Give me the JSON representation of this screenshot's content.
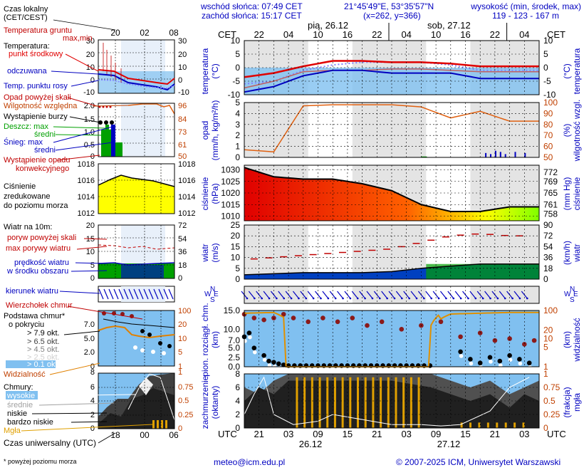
{
  "header": {
    "sunrise": "wschód słońca: 07:49 CET",
    "sunset": "zachód słońca: 15:17 CET",
    "coords": "21°45'49\"E, 53°35'57\"N",
    "grid": "(x=262, y=366)",
    "elev_title": "wysokość (min, środek, max)",
    "elev_values": "119 - 123 - 167 m"
  },
  "legend": {
    "czas_lokalny": "Czas lokalny",
    "cet_cest": "(CET/CEST)",
    "small_hours": [
      "20",
      "02",
      "08"
    ],
    "temp_gruntu": "Temperatura gruntu",
    "max_min": "max,min",
    "temperatura": "Temperatura:",
    "punkt_srodkowy": "punkt środkowy",
    "odczuwana": "odczuwana",
    "temp_rosy": "Temp. punktu rosy",
    "opad_powyzej": "Opad powyżej skali",
    "wilgotnosc": "Wilgotność względna",
    "burza": "Wystąpienie burzy",
    "deszcz_max": "Deszcz: max",
    "deszcz_sredni": "średni",
    "snieg_max": "Śnieg:   max",
    "snieg_sredni": "średni",
    "konwekcja1": "Wystąpienie opadu",
    "konwekcja2": "konwekcyjnego",
    "cisnienie1": "Ciśnienie",
    "cisnienie2": "zredukowane",
    "cisnienie3": "do poziomu morza",
    "wiatr_na": "Wiatr na 10m:",
    "poryw_powyzej": "poryw powyżej skali",
    "max_porywy": "max porywy wiatru",
    "predkosc1": "prędkość wiatru",
    "predkosc2": "w środku obszaru",
    "kierunek": "kierunek wiatru",
    "wierzcholek": "Wierzchołek chmur",
    "podstawa1": "Podstawa chmur*",
    "podstawa2": "o pokryciu",
    "okt": [
      "> 7.9 okt.",
      "> 6.5 okt.",
      "> 4.5 okt.",
      "> 2.5 okt.",
      "> 0.1 okt."
    ],
    "widzialnosc": "Widzialność",
    "chmury": "Chmury:",
    "wysokie": "wysokie",
    "srednie": "średnie",
    "niskie": "niskie",
    "bardzo_niskie": "bardzo niskie",
    "mgla": "Mgła",
    "czas_uniwersalny": "Czas uniwersalny (UTC)",
    "utc_hours": [
      "18",
      "00",
      "06"
    ],
    "footnote": "* powyżej poziomu morza"
  },
  "axes": {
    "cet": "CET",
    "utc": "UTC",
    "day1": "pią, 26.12",
    "day2": "sob, 27.12",
    "day1_bottom": "26.12",
    "day2_bottom": "27.12",
    "top_hours": [
      "22",
      "04",
      "10",
      "16",
      "22",
      "04",
      "10",
      "16",
      "22",
      "04"
    ],
    "bottom_hours": [
      "21",
      "03",
      "09",
      "15",
      "21",
      "03",
      "09",
      "15",
      "21",
      "03"
    ],
    "temp_label": [
      "temperatura",
      "(°C)"
    ],
    "opad_label": [
      "opad",
      "(mm/h, kg/m²/h)"
    ],
    "wilg_label": [
      "(%)",
      "wilgotność wzgl."
    ],
    "cisn_label": [
      "ciśnienie",
      "(hPa)"
    ],
    "mmhg_label": [
      "(mm Hg)",
      "ciśnienie"
    ],
    "wiatr_label": [
      "wiatr",
      "(m/s)"
    ],
    "kmh_label": [
      "(km/h)",
      "wiatr"
    ],
    "chm_label": [
      "pion. rozciągł. chm.",
      "(km)"
    ],
    "widz_label": [
      "(km)",
      "widzialność"
    ],
    "zachm_label": [
      "zachmurzenie",
      "(oktanty)"
    ],
    "mgla_label": [
      "(frakcja)",
      "mgła"
    ],
    "compass": [
      "N",
      "W",
      "E",
      "S"
    ]
  },
  "footer": {
    "email": "meteo@icm.edu.pl",
    "copyright": "© 2007-2025 ICM, Uniwersytet Warszawski"
  },
  "colors": {
    "red": "#e00000",
    "blue": "#0000c0",
    "green": "#00a000",
    "orange": "#e06010",
    "sky": "#80c0f0",
    "night": "#e0e0e0",
    "yellow": "#ffff00"
  },
  "chart_data": [
    {
      "type": "line",
      "title": "temperatura",
      "unit": "°C",
      "ylim": [
        -10,
        10
      ],
      "x_hours": [
        0,
        6,
        12,
        18,
        24,
        30,
        36,
        42,
        48,
        54
      ],
      "series": [
        {
          "name": "temperatura",
          "values": [
            -3.5,
            -2,
            0.5,
            2.5,
            2.5,
            2,
            2,
            1.5,
            0.5,
            0.5
          ]
        },
        {
          "name": "odczuwana",
          "values": [
            -9,
            -7,
            -3,
            -1,
            -1,
            -2,
            -2,
            -2,
            -4,
            -4
          ]
        },
        {
          "name": "punkt rosy",
          "values": [
            -7.5,
            -5,
            -1.5,
            -1,
            -1,
            -0.5,
            -0.5,
            -1,
            -1.5,
            -1.5
          ]
        },
        {
          "name": "temp. gruntu",
          "values": [
            -6,
            -5,
            -1,
            1,
            2,
            2,
            2,
            1,
            -1,
            -1
          ]
        }
      ]
    },
    {
      "type": "line",
      "title": "opad / wilgotność",
      "ylim_left": [
        0,
        5
      ],
      "ylim_right": [
        50,
        100
      ],
      "series": [
        {
          "name": "wilgotność względna",
          "values": [
            57,
            55,
            97,
            98,
            98,
            98,
            96,
            86,
            92,
            83
          ]
        },
        {
          "name": "opad",
          "values": [
            0,
            0,
            0,
            0,
            0,
            0,
            0,
            0.1,
            0.8,
            0.3
          ]
        }
      ]
    },
    {
      "type": "area",
      "title": "ciśnienie",
      "unit": "hPa",
      "ylim": [
        1008,
        1032
      ],
      "ylim_right": [
        758,
        772
      ],
      "values": [
        1031,
        1027,
        1026,
        1026,
        1024,
        1021,
        1015,
        1012,
        1012,
        1014
      ]
    },
    {
      "type": "line",
      "title": "wiatr",
      "unit": "m/s",
      "ylim": [
        0,
        25
      ],
      "ylim_right": [
        0,
        90
      ],
      "series": [
        {
          "name": "prędkość",
          "values": [
            2,
            2.5,
            3,
            3,
            3,
            3.5,
            5,
            6,
            7,
            7
          ]
        },
        {
          "name": "porywy",
          "values": [
            9,
            10,
            11,
            12,
            13,
            14,
            17,
            20,
            21,
            20
          ]
        }
      ]
    },
    {
      "type": "line",
      "title": "widzialność",
      "unit": "km",
      "ylim": [
        0,
        15
      ],
      "ylim_right": [
        0,
        100
      ],
      "series": [
        {
          "name": "widzialność",
          "values": [
            80,
            85,
            2,
            1,
            1,
            1,
            1,
            75,
            80,
            85
          ]
        }
      ]
    },
    {
      "type": "area",
      "title": "zachmurzenie",
      "unit": "oktanty",
      "ylim": [
        0,
        8
      ],
      "ylim_right": [
        0,
        1
      ],
      "series": [
        {
          "name": "chmury niskie",
          "values": [
            6,
            7,
            8,
            8,
            8,
            8,
            8,
            8,
            7,
            6
          ]
        },
        {
          "name": "mgła",
          "values": [
            0,
            0.05,
            0.9,
            0.95,
            0.95,
            0.9,
            0.8,
            0.1,
            0,
            0
          ]
        }
      ]
    }
  ]
}
